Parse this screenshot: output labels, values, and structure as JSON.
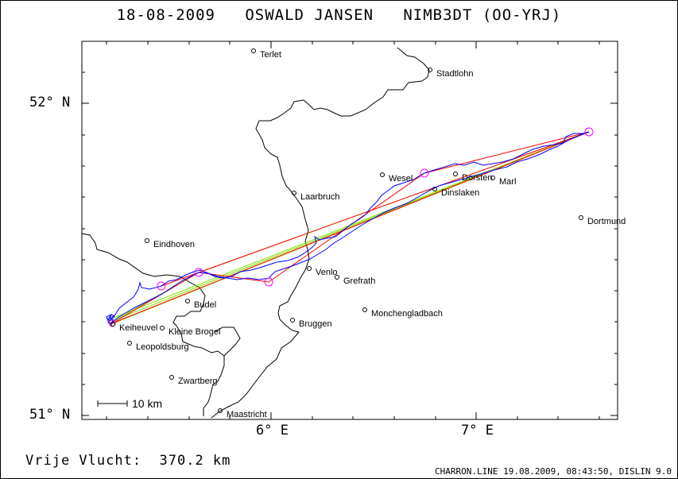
{
  "header": {
    "title": "18-08-2009   OSWALD JANSEN   NIMB3DT (OO-YRJ)"
  },
  "axes": {
    "lat_labels": [
      "52° N",
      "51° N"
    ],
    "lon_labels": [
      "6° E",
      "7° E"
    ]
  },
  "map": {
    "scale_label": "10 km",
    "cities": [
      {
        "name": "Terlet"
      },
      {
        "name": "Stadtlohn"
      },
      {
        "name": "Wesel"
      },
      {
        "name": "Dorsten"
      },
      {
        "name": "Marl"
      },
      {
        "name": "Dinslaken"
      },
      {
        "name": "Laarbruch"
      },
      {
        "name": "Dortmund"
      },
      {
        "name": "Eindhoven"
      },
      {
        "name": "Venlo"
      },
      {
        "name": "Grefrath"
      },
      {
        "name": "Budel"
      },
      {
        "name": "Monchengladbach"
      },
      {
        "name": "Bruggen"
      },
      {
        "name": "Keiheuvel"
      },
      {
        "name": "Kleine Brogel"
      },
      {
        "name": "Leopoldsburg"
      },
      {
        "name": "Zwartberg"
      },
      {
        "name": "Maastricht"
      }
    ],
    "colors": {
      "track": "#0000ff",
      "task_lines": "#ff0000",
      "optimized_lines": "#80e000",
      "turnpoints": "#ff00ff",
      "border": "#000000"
    }
  },
  "footer": {
    "distance": "Vrije Vlucht:  370.2 km",
    "credit": "CHARRON.LINE 19.08.2009, 08:43:50, DISLIN 9.0"
  }
}
